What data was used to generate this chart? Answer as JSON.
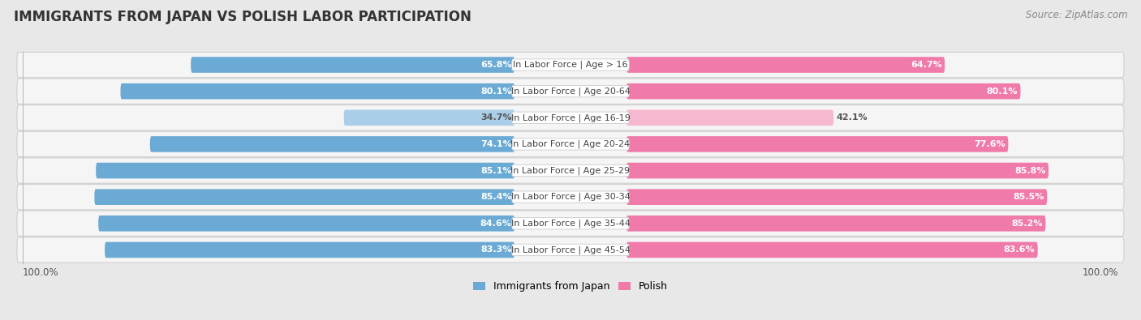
{
  "title": "IMMIGRANTS FROM JAPAN VS POLISH LABOR PARTICIPATION",
  "source": "Source: ZipAtlas.com",
  "categories": [
    "In Labor Force | Age > 16",
    "In Labor Force | Age 20-64",
    "In Labor Force | Age 16-19",
    "In Labor Force | Age 20-24",
    "In Labor Force | Age 25-29",
    "In Labor Force | Age 30-34",
    "In Labor Force | Age 35-44",
    "In Labor Force | Age 45-54"
  ],
  "japan_values": [
    65.8,
    80.1,
    34.7,
    74.1,
    85.1,
    85.4,
    84.6,
    83.3
  ],
  "polish_values": [
    64.7,
    80.1,
    42.1,
    77.6,
    85.8,
    85.5,
    85.2,
    83.6
  ],
  "japan_color": "#6aaad4",
  "japan_color_light": "#aacde8",
  "polish_color": "#f07aaa",
  "polish_color_light": "#f5b8d0",
  "bg_color": "#e8e8e8",
  "row_bg": "#f5f5f5",
  "separator_color": "#d0d0d0",
  "title_font_size": 12,
  "source_font_size": 8.5,
  "label_font_size": 8,
  "value_font_size": 8,
  "legend_label_japan": "Immigrants from Japan",
  "legend_label_polish": "Polish",
  "max_value": 100.0,
  "axis_label_left": "100.0%",
  "axis_label_right": "100.0%"
}
